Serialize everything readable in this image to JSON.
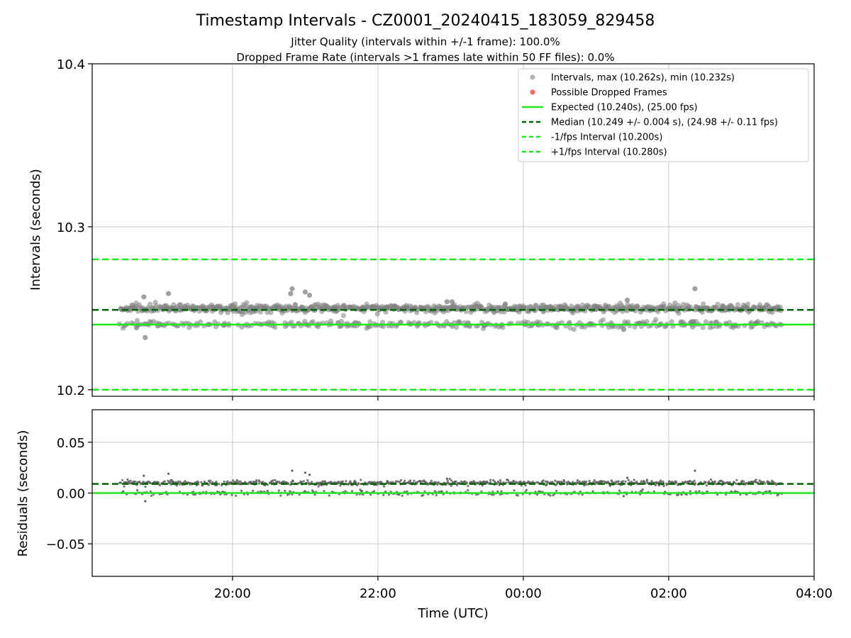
{
  "title": "Timestamp Intervals - CZ0001_20240415_183059_829458",
  "subtitle_1": "Jitter Quality (intervals within +/-1 frame): 100.0%",
  "subtitle_2": "Dropped Frame Rate (intervals >1 frames late within 50 FF files): 0.0%",
  "colors": {
    "points": "#808080",
    "residual_points": "#606060",
    "dropped": "#ff4d4d",
    "expected": "#1ee81e",
    "median": "#006400",
    "fps_band": "#1ee81e",
    "grid": "#c8c8c8"
  },
  "chart_data": [
    {
      "type": "scatter",
      "panel": "intervals",
      "ylabel": "Intervals (seconds)",
      "ylim": [
        10.196,
        10.4
      ],
      "yticks": [
        10.2,
        10.3,
        10.4
      ],
      "ytick_labels": [
        "10.2",
        "10.3",
        "10.4"
      ],
      "xlim_hours": [
        18.07,
        28.0
      ],
      "x_start_hours": 18.45,
      "x_end_hours": 27.55,
      "grid": true,
      "legend_position": "top-right",
      "legend": [
        {
          "kind": "point",
          "label": "Intervals, max (10.262s), min (10.232s)"
        },
        {
          "kind": "dropped",
          "label": "Possible Dropped Frames"
        },
        {
          "kind": "solid",
          "label": "Expected (10.240s), (25.00 fps)"
        },
        {
          "kind": "median",
          "label": "Median (10.249 +/- 0.004 s), (24.98 +/- 0.11 fps)"
        },
        {
          "kind": "band",
          "label": "-1/fps Interval (10.200s)"
        },
        {
          "kind": "band",
          "label": "+1/fps Interval (10.280s)"
        }
      ],
      "expected": 10.24,
      "median": 10.249,
      "minus_fps": 10.2,
      "plus_fps": 10.28,
      "bands": [
        {
          "center": 10.25,
          "fraction": 0.72
        },
        {
          "center": 10.24,
          "fraction": 0.28
        }
      ],
      "outliers": [
        {
          "x": 18.78,
          "y": 10.257
        },
        {
          "x": 18.68,
          "y": 10.238
        },
        {
          "x": 18.8,
          "y": 10.232
        },
        {
          "x": 19.12,
          "y": 10.259
        },
        {
          "x": 20.82,
          "y": 10.262
        },
        {
          "x": 20.8,
          "y": 10.259
        },
        {
          "x": 21.0,
          "y": 10.26
        },
        {
          "x": 21.06,
          "y": 10.258
        },
        {
          "x": 21.45,
          "y": 10.241
        },
        {
          "x": 22.95,
          "y": 10.254
        },
        {
          "x": 23.02,
          "y": 10.254
        },
        {
          "x": 25.43,
          "y": 10.255
        },
        {
          "x": 25.38,
          "y": 10.237
        },
        {
          "x": 26.36,
          "y": 10.262
        }
      ],
      "dropped_frames": []
    },
    {
      "type": "scatter",
      "panel": "residuals",
      "ylabel": "Residuals (seconds)",
      "xlabel": "Time (UTC)",
      "ylim": [
        -0.082,
        0.082
      ],
      "yticks": [
        0.05,
        0.0,
        -0.05
      ],
      "ytick_labels": [
        "0.05",
        "0.00",
        "−0.05"
      ],
      "xlim_hours": [
        18.07,
        28.0
      ],
      "xticks_hours": [
        20,
        22,
        24,
        26,
        28
      ],
      "xtick_labels": [
        "20:00",
        "22:00",
        "00:00",
        "02:00",
        "04:00"
      ],
      "grid": true,
      "expected": 0.0,
      "median": 0.009,
      "bands": [
        {
          "center": 0.01,
          "fraction": 0.72
        },
        {
          "center": 0.0,
          "fraction": 0.28
        }
      ],
      "outliers": [
        {
          "x": 18.78,
          "y": 0.017
        },
        {
          "x": 18.8,
          "y": -0.008
        },
        {
          "x": 19.12,
          "y": 0.019
        },
        {
          "x": 20.82,
          "y": 0.022
        },
        {
          "x": 21.0,
          "y": 0.02
        },
        {
          "x": 21.06,
          "y": 0.018
        },
        {
          "x": 22.95,
          "y": 0.014
        },
        {
          "x": 25.43,
          "y": 0.015
        },
        {
          "x": 25.38,
          "y": -0.003
        },
        {
          "x": 26.36,
          "y": 0.022
        }
      ]
    }
  ]
}
